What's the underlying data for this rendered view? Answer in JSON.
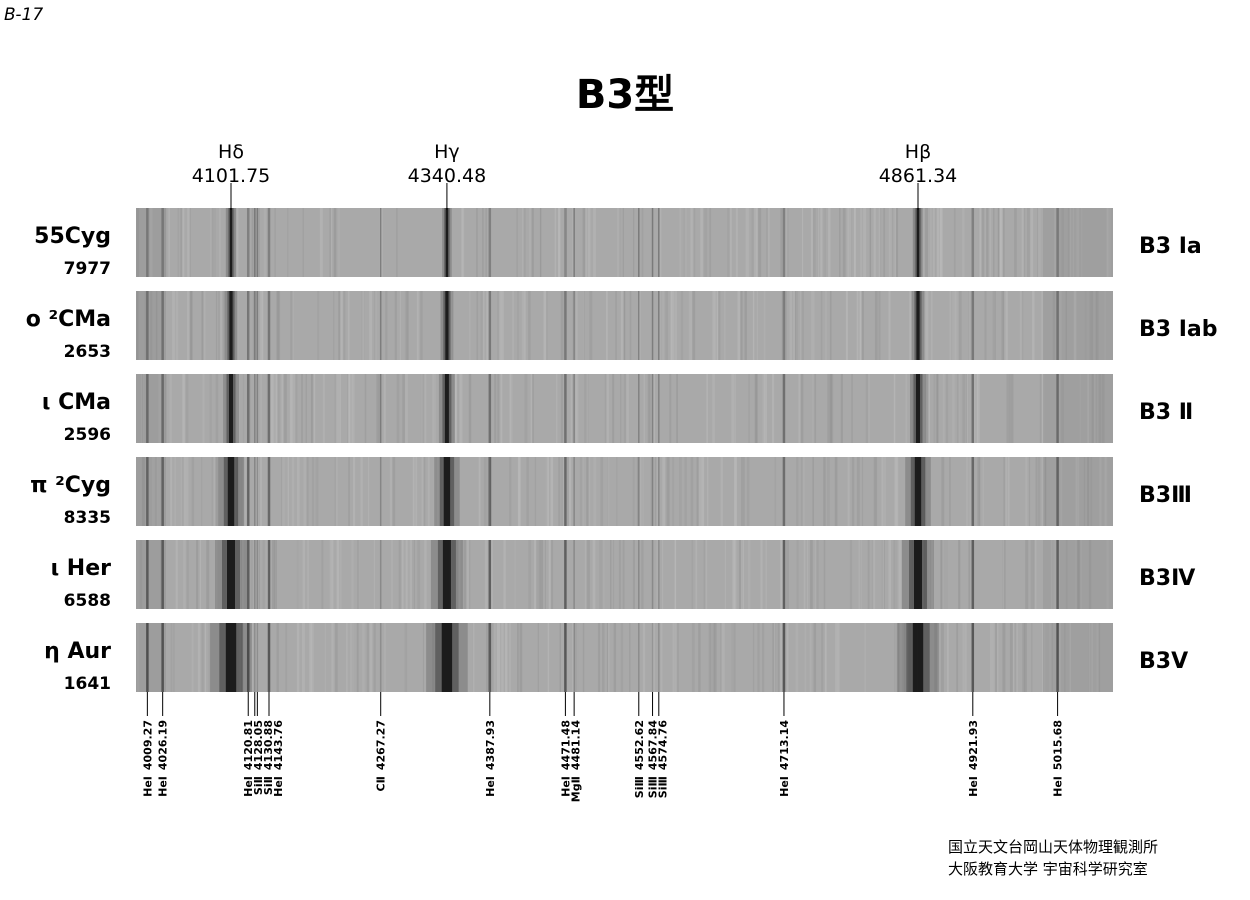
{
  "plate_id": "B-17",
  "title": "B3型",
  "balmer": [
    {
      "name": "Hδ",
      "wavelength": 4101.75
    },
    {
      "name": "Hγ",
      "wavelength": 4340.48
    },
    {
      "name": "Hβ",
      "wavelength": 4861.34
    }
  ],
  "stars": [
    {
      "name": "55Cyg",
      "hd": 7977,
      "sptype": "B3 Ⅰa"
    },
    {
      "name": "ο ²CMa",
      "hd": 2653,
      "sptype": "B3 Ⅰab"
    },
    {
      "name": "ι CMa",
      "hd": 2596,
      "sptype": "B3 Ⅱ"
    },
    {
      "name": "π ²Cyg",
      "hd": 8335,
      "sptype": "B3Ⅲ"
    },
    {
      "name": "ι Her",
      "hd": 6588,
      "sptype": "B3Ⅳ"
    },
    {
      "name": "η Aur",
      "hd": 1641,
      "sptype": "B3Ⅴ"
    }
  ],
  "lines": [
    {
      "element": "HeⅠ",
      "wavelength": 4009.27
    },
    {
      "element": "HeⅠ",
      "wavelength": 4026.19
    },
    {
      "element": "HeⅠ",
      "wavelength": 4120.81
    },
    {
      "element": "SiⅡ",
      "wavelength": 4128.05
    },
    {
      "element": "SiⅡ",
      "wavelength": 4130.88
    },
    {
      "element": "HeⅠ",
      "wavelength": 4143.76
    },
    {
      "element": "CⅡ",
      "wavelength": 4267.27
    },
    {
      "element": "HeⅠ",
      "wavelength": 4387.93
    },
    {
      "element": "HeⅠ",
      "wavelength": 4471.48
    },
    {
      "element": "MgⅡ",
      "wavelength": 4481.14
    },
    {
      "element": "SiⅢ",
      "wavelength": 4552.62
    },
    {
      "element": "SiⅢ",
      "wavelength": 4567.84
    },
    {
      "element": "SiⅢ",
      "wavelength": 4574.76
    },
    {
      "element": "HeⅠ",
      "wavelength": 4713.14
    },
    {
      "element": "HeⅠ",
      "wavelength": 4921.93
    },
    {
      "element": "HeⅠ",
      "wavelength": 5015.68
    }
  ],
  "credits": [
    "国立天文台岡山天体物理観測所",
    "大阪教育大学 宇宙科学研究室"
  ]
}
